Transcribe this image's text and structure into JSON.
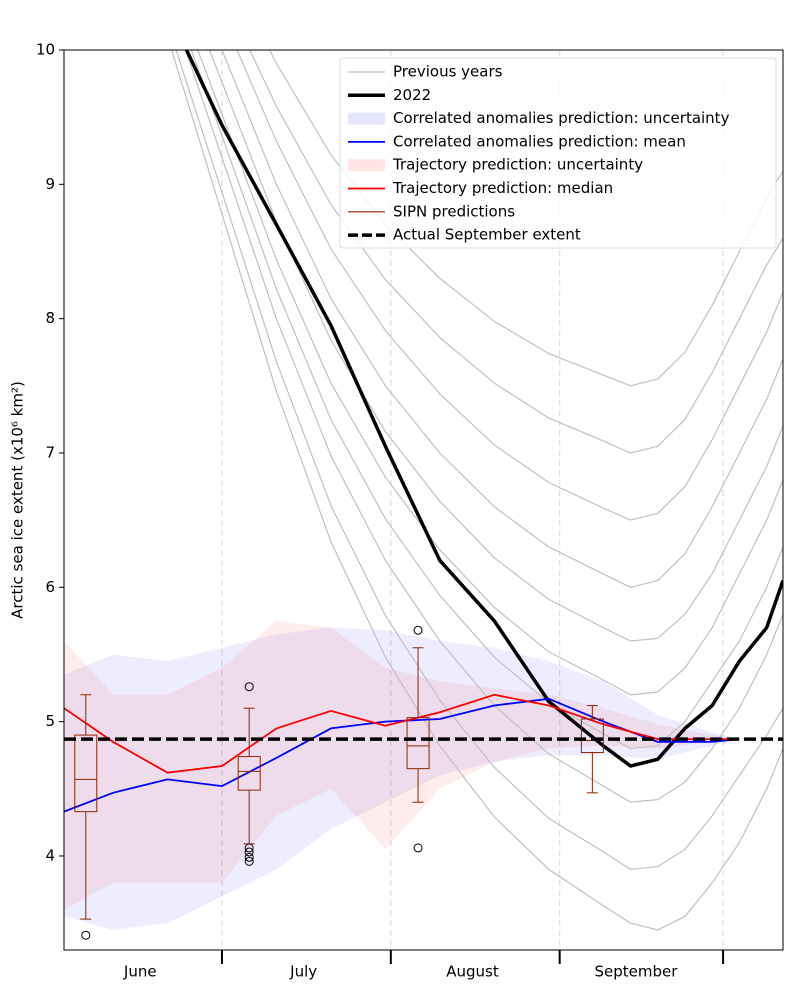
{
  "chart_data": {
    "type": "line",
    "ylabel": "Arctic sea ice extent (x10⁶ km²)",
    "xlim": [
      1,
      133
    ],
    "ylim": [
      3.3,
      10
    ],
    "yticks": [
      4,
      5,
      6,
      7,
      8,
      9,
      10
    ],
    "xticks": [
      30,
      61,
      92,
      122
    ],
    "month_labels": [
      {
        "value": 15,
        "label": "June"
      },
      {
        "value": 45,
        "label": "July"
      },
      {
        "value": 76,
        "label": "August"
      },
      {
        "value": 106,
        "label": "September"
      }
    ],
    "grid": true,
    "legend": "upper right",
    "x": [
      20,
      30,
      40,
      50,
      60,
      70,
      80,
      90,
      100,
      105,
      110,
      115,
      120,
      125,
      130,
      133
    ],
    "series": [
      {
        "name": "Previous years",
        "color": "#c0c0c0",
        "lines": [
          [
            11.5,
            10.7,
            9.9,
            9.22,
            8.7,
            8.3,
            7.98,
            7.74,
            7.58,
            7.5,
            7.55,
            7.75,
            8.1,
            8.5,
            8.9,
            9.1
          ],
          [
            11.3,
            10.44,
            9.58,
            8.85,
            8.29,
            7.86,
            7.52,
            7.26,
            7.09,
            7.0,
            7.05,
            7.25,
            7.6,
            8.0,
            8.4,
            8.6
          ],
          [
            11.2,
            10.26,
            9.32,
            8.52,
            7.91,
            7.44,
            7.06,
            6.78,
            6.59,
            6.5,
            6.55,
            6.75,
            7.1,
            7.5,
            7.9,
            8.2
          ],
          [
            11.0,
            10.0,
            9.0,
            8.15,
            7.5,
            7.0,
            6.6,
            6.3,
            6.1,
            6.0,
            6.05,
            6.25,
            6.6,
            7.0,
            7.4,
            7.7
          ],
          [
            10.8,
            9.76,
            8.72,
            7.84,
            7.16,
            6.64,
            6.22,
            5.91,
            5.7,
            5.6,
            5.62,
            5.8,
            6.1,
            6.5,
            6.9,
            7.2
          ],
          [
            10.6,
            9.52,
            8.44,
            7.52,
            6.82,
            6.28,
            5.85,
            5.52,
            5.31,
            5.2,
            5.22,
            5.4,
            5.7,
            6.1,
            6.5,
            6.8
          ],
          [
            10.5,
            9.36,
            8.22,
            7.25,
            6.51,
            5.94,
            5.48,
            5.14,
            4.91,
            4.8,
            4.82,
            5.0,
            5.3,
            5.6,
            6.0,
            6.3
          ],
          [
            10.4,
            9.2,
            8.0,
            6.98,
            6.2,
            5.6,
            5.12,
            4.76,
            4.52,
            4.4,
            4.42,
            4.55,
            4.8,
            5.1,
            5.5,
            5.8
          ],
          [
            10.2,
            8.94,
            7.68,
            6.61,
            5.79,
            5.16,
            4.66,
            4.28,
            4.03,
            3.9,
            3.92,
            4.05,
            4.3,
            4.6,
            4.9,
            5.1
          ],
          [
            10.1,
            8.78,
            7.46,
            6.34,
            5.48,
            4.82,
            4.29,
            3.9,
            3.63,
            3.5,
            3.45,
            3.55,
            3.8,
            4.1,
            4.5,
            4.8
          ]
        ]
      },
      {
        "name": "2022",
        "color": "#000000",
        "values": [
          10.3,
          9.44,
          8.7,
          7.95,
          7.05,
          6.2,
          5.75,
          5.15,
          4.82,
          4.67,
          4.72,
          4.95,
          5.12,
          5.45,
          5.7,
          6.05
        ]
      }
    ],
    "prediction_x": [
      1,
      10,
      20,
      30,
      40,
      50,
      60,
      70,
      80,
      90,
      100,
      110,
      120,
      125
    ],
    "bands": [
      {
        "name": "Correlated anomalies prediction: uncertainty",
        "color": "#0000ff",
        "upper": [
          5.35,
          5.5,
          5.45,
          5.55,
          5.65,
          5.7,
          5.68,
          5.6,
          5.55,
          5.45,
          5.3,
          5.05,
          4.92,
          4.87
        ],
        "lower": [
          3.55,
          3.45,
          3.5,
          3.7,
          3.9,
          4.2,
          4.4,
          4.6,
          4.7,
          4.75,
          4.75,
          4.72,
          4.82,
          4.87
        ]
      },
      {
        "name": "Trajectory prediction: uncertainty",
        "color": "#ff0000",
        "upper": [
          5.6,
          5.2,
          5.2,
          5.4,
          5.75,
          5.7,
          5.4,
          5.3,
          5.25,
          5.2,
          5.1,
          4.98,
          4.9,
          4.87
        ],
        "lower": [
          3.6,
          3.8,
          3.8,
          3.8,
          4.3,
          4.5,
          4.05,
          4.5,
          4.7,
          4.8,
          4.82,
          4.8,
          4.85,
          4.87
        ]
      }
    ],
    "predictions": [
      {
        "name": "Correlated anomalies prediction: mean",
        "color": "#0000ff",
        "values": [
          4.33,
          4.47,
          4.57,
          4.52,
          4.73,
          4.95,
          5.0,
          5.02,
          5.12,
          5.17,
          5.0,
          4.85,
          4.85,
          4.87
        ]
      },
      {
        "name": "Trajectory prediction: median",
        "color": "#ff0000",
        "values": [
          5.1,
          4.85,
          4.62,
          4.67,
          4.95,
          5.08,
          4.97,
          5.07,
          5.2,
          5.12,
          4.98,
          4.87,
          4.87,
          4.87
        ]
      }
    ],
    "boxplots": {
      "name": "SIPN predictions",
      "color": "#8b2500",
      "x": [
        5,
        35,
        66,
        98
      ],
      "boxes": [
        {
          "whislo": 3.53,
          "q1": 4.33,
          "med": 4.57,
          "q3": 4.9,
          "whishi": 5.2,
          "fliers": [
            3.41
          ]
        },
        {
          "whislo": 4.09,
          "q1": 4.49,
          "med": 4.63,
          "q3": 4.74,
          "whishi": 5.1,
          "fliers": [
            5.26,
            4.06,
            4.03,
            3.99,
            3.96
          ]
        },
        {
          "whislo": 4.4,
          "q1": 4.65,
          "med": 4.82,
          "q3": 5.03,
          "whishi": 5.55,
          "fliers": [
            5.68,
            4.06
          ]
        },
        {
          "whislo": 4.47,
          "q1": 4.77,
          "med": 4.86,
          "q3": 5.02,
          "whishi": 5.12,
          "fliers": []
        }
      ]
    },
    "reference": {
      "name": "Actual September extent",
      "value": 4.87,
      "color": "#000000"
    }
  }
}
